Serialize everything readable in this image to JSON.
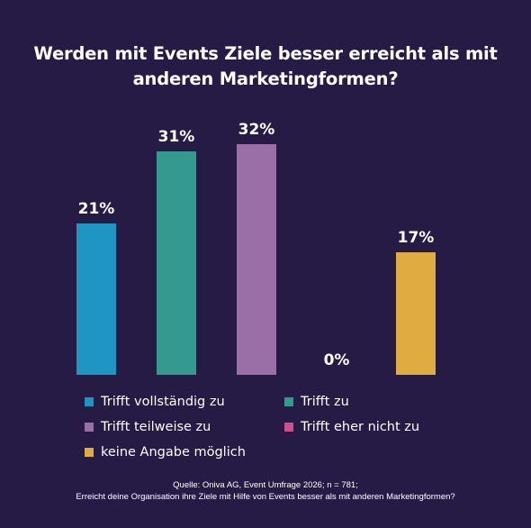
{
  "colors": {
    "background": "#251b45",
    "text": "#ffffff"
  },
  "chart_data": {
    "type": "bar",
    "title_lines": [
      "Werden mit Events Ziele besser erreicht als mit",
      "anderen Marketingformen?"
    ],
    "categories": [
      "Trifft vollständig zu",
      "Trifft zu",
      "Trifft teilweise zu",
      "Trifft eher nicht zu",
      "keine Angabe möglich"
    ],
    "values": [
      21,
      31,
      32,
      0,
      17
    ],
    "value_labels": [
      "21%",
      "31%",
      "32%",
      "0%",
      "17%"
    ],
    "colors": [
      "#1f95c4",
      "#349a90",
      "#9a6fa8",
      "#cf4f8a",
      "#e0ac41"
    ],
    "ylim": [
      0,
      34
    ],
    "grid": false,
    "legend_position": "bottom"
  },
  "source": {
    "line1": "Quelle: Oniva AG, Event Umfrage 2026; n = 781;",
    "line2": "Erreicht deine Organisation ihre Ziele mit Hilfe von Events besser als mit anderen Marketingformen?"
  }
}
